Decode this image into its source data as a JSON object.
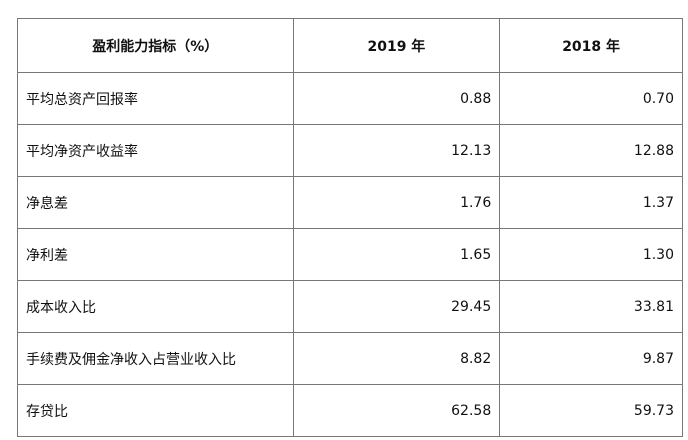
{
  "table": {
    "headers": [
      "盈利能力指标（%）",
      "2019 年",
      "2018 年"
    ],
    "rows": [
      [
        "平均总资产回报率",
        "0.88",
        "0.70"
      ],
      [
        "平均净资产收益率",
        "12.13",
        "12.88"
      ],
      [
        "净息差",
        "1.76",
        "1.37"
      ],
      [
        "净利差",
        "1.65",
        "1.30"
      ],
      [
        "成本收入比",
        "29.45",
        "33.81"
      ],
      [
        "手续费及佣金净收入占营业收入比",
        "8.82",
        "9.87"
      ],
      [
        "存贷比",
        "62.58",
        "59.73"
      ]
    ]
  }
}
